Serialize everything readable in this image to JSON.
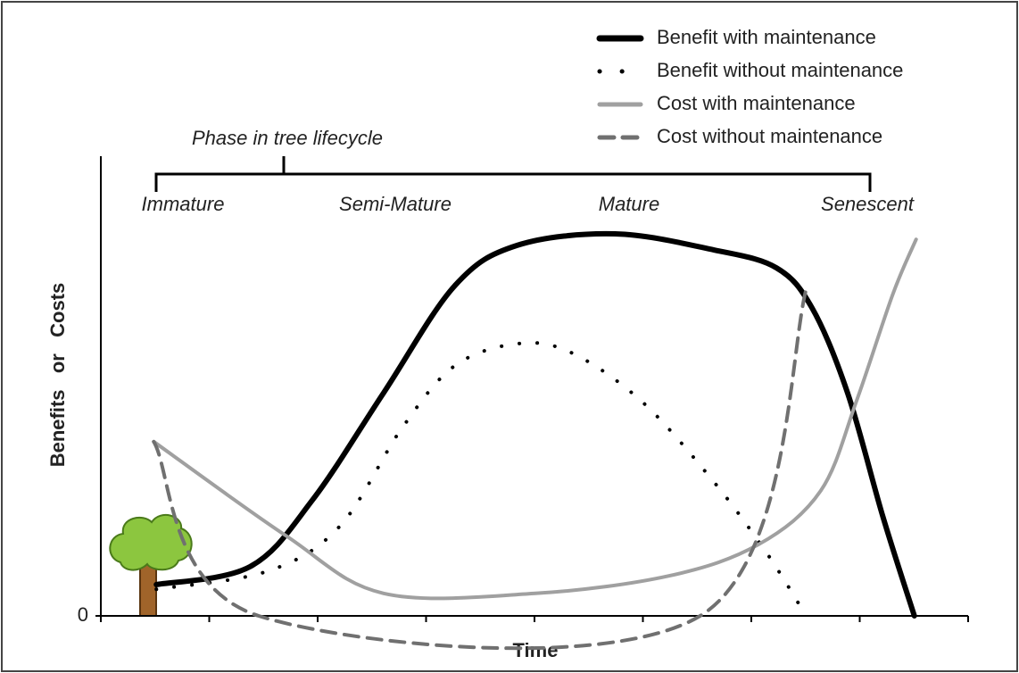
{
  "chart_data": {
    "type": "line",
    "xlabel": "Time",
    "ylabel": "Benefits   or   Costs",
    "annotation": "Phase in tree lifecycle",
    "phases": [
      "Immature",
      "Semi-Mature",
      "Mature",
      "Senescent"
    ],
    "xlim": [
      0,
      100
    ],
    "ylim": [
      0,
      100
    ],
    "xticks": [
      0,
      12.5,
      25,
      37.5,
      50,
      62.5,
      75,
      87.5,
      100
    ],
    "yticks": [
      0
    ],
    "series": [
      {
        "name": "Benefit with maintenance",
        "color": "#000000",
        "dash": "solid",
        "width": 6,
        "x": [
          6.4,
          17.2,
          24.4,
          32.6,
          40.8,
          48.0,
          59.3,
          70.7,
          77.9,
          82.0,
          86.1,
          90.2,
          93.8
        ],
        "values": [
          6.8,
          10.7,
          25.2,
          48.5,
          71.8,
          80.6,
          83.1,
          79.6,
          75.7,
          67.0,
          48.5,
          21.4,
          0
        ]
      },
      {
        "name": "Benefit without maintenance",
        "color": "#000000",
        "dash": "dotted",
        "width": 4,
        "x": [
          6.4,
          19.2,
          27.5,
          34.7,
          40.8,
          48.0,
          54.2,
          62.4,
          70.7,
          76.8,
          81.0
        ],
        "values": [
          5.8,
          9.7,
          19.4,
          40.8,
          54.4,
          59.2,
          57.3,
          46.6,
          29.1,
          13.6,
          1.0
        ]
      },
      {
        "name": "Cost with maintenance",
        "color": "#a0a0a0",
        "dash": "solid",
        "width": 4,
        "x": [
          6.1,
          21.3,
          32.6,
          50.1,
          65.5,
          75.8,
          83.0,
          87.1,
          91.3,
          94.0
        ],
        "values": [
          37.9,
          17.5,
          4.9,
          4.9,
          8.7,
          15.5,
          27.2,
          46.6,
          69.9,
          81.9
        ]
      },
      {
        "name": "Cost without maintenance",
        "color": "#707070",
        "dash": "dashed",
        "width": 4,
        "x": [
          6.1,
          18.2,
          69.1,
          81.5
        ],
        "values": [
          37.9,
          0,
          0,
          72.2
        ]
      }
    ]
  }
}
